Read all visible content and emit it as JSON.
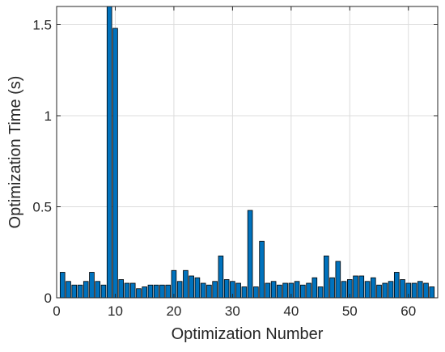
{
  "chart_data": {
    "type": "bar",
    "title": "",
    "xlabel": "Optimization Number",
    "ylabel": "Optimization Time (s)",
    "xlim": [
      0,
      65
    ],
    "ylim": [
      0,
      1.6
    ],
    "xticks": [
      0,
      10,
      20,
      30,
      40,
      50,
      60
    ],
    "yticks": [
      0,
      0.5,
      1,
      1.5
    ],
    "xtick_labels": [
      "0",
      "10",
      "20",
      "30",
      "40",
      "50",
      "60"
    ],
    "ytick_labels": [
      "0",
      "0.5",
      "1",
      "1.5"
    ],
    "grid": true,
    "bar_color": "#0072BD",
    "edge_color": "#000000",
    "series": [
      {
        "x": [
          1,
          2,
          3,
          4,
          5,
          6,
          7,
          8,
          9,
          10,
          11,
          12,
          13,
          14,
          15,
          16,
          17,
          18,
          19,
          20,
          21,
          22,
          23,
          24,
          25,
          26,
          27,
          28,
          29,
          30,
          31,
          32,
          33,
          34,
          35,
          36,
          37,
          38,
          39,
          40,
          41,
          42,
          43,
          44,
          45,
          46,
          47,
          48,
          49,
          50,
          51,
          52,
          53,
          54,
          55,
          56,
          57,
          58,
          59,
          60,
          61,
          62,
          63,
          64
        ],
        "values": [
          0.14,
          0.09,
          0.07,
          0.07,
          0.09,
          0.14,
          0.09,
          0.07,
          1.62,
          1.48,
          0.1,
          0.08,
          0.08,
          0.05,
          0.06,
          0.07,
          0.07,
          0.07,
          0.07,
          0.15,
          0.09,
          0.15,
          0.12,
          0.11,
          0.08,
          0.07,
          0.09,
          0.23,
          0.1,
          0.09,
          0.08,
          0.06,
          0.48,
          0.06,
          0.31,
          0.08,
          0.09,
          0.07,
          0.08,
          0.08,
          0.09,
          0.07,
          0.08,
          0.11,
          0.06,
          0.23,
          0.11,
          0.2,
          0.09,
          0.1,
          0.12,
          0.12,
          0.09,
          0.11,
          0.07,
          0.08,
          0.09,
          0.14,
          0.1,
          0.08,
          0.08,
          0.09,
          0.08,
          0.06
        ]
      }
    ]
  }
}
